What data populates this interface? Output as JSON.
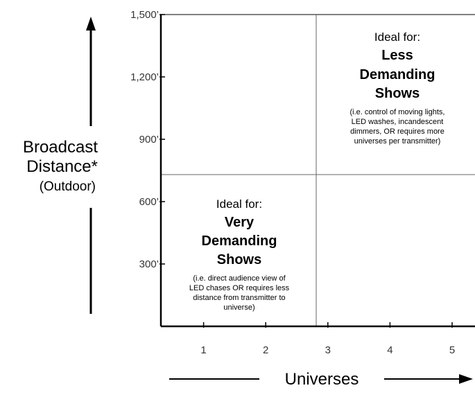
{
  "chart_data": {
    "type": "quadrant",
    "title": "",
    "xlabel": "Universes",
    "ylabel_lines": [
      "Broadcast",
      "Distance*"
    ],
    "ylabel_sub": "(Outdoor)",
    "x_ticks": [
      1,
      2,
      3,
      4,
      5
    ],
    "x_tick_labels": [
      "1",
      "2",
      "3",
      "4",
      "5"
    ],
    "xlim": [
      0,
      5
    ],
    "y_ticks": [
      300,
      600,
      900,
      1200,
      1500
    ],
    "y_tick_labels": [
      "300’",
      "600’",
      "900’",
      "1,200’",
      "1,500’"
    ],
    "ylim": [
      0,
      1500
    ],
    "x_split": 2.5,
    "y_split": 730,
    "quadrants": [
      {
        "id": "upper-right",
        "heading": "Ideal for:",
        "title_lines": [
          "Less",
          "Demanding",
          "Shows"
        ],
        "note_lines": [
          "(i.e. control of moving lights,",
          "LED washes, incandescent",
          "dimmers, OR requires more",
          "universes per transmitter)"
        ]
      },
      {
        "id": "lower-left",
        "heading": "Ideal for:",
        "title_lines": [
          "Very",
          "Demanding",
          "Shows"
        ],
        "note_lines": [
          "(i.e. direct audience view of",
          "LED chases OR requires less",
          "distance from transmitter to",
          "universe)"
        ]
      }
    ]
  }
}
